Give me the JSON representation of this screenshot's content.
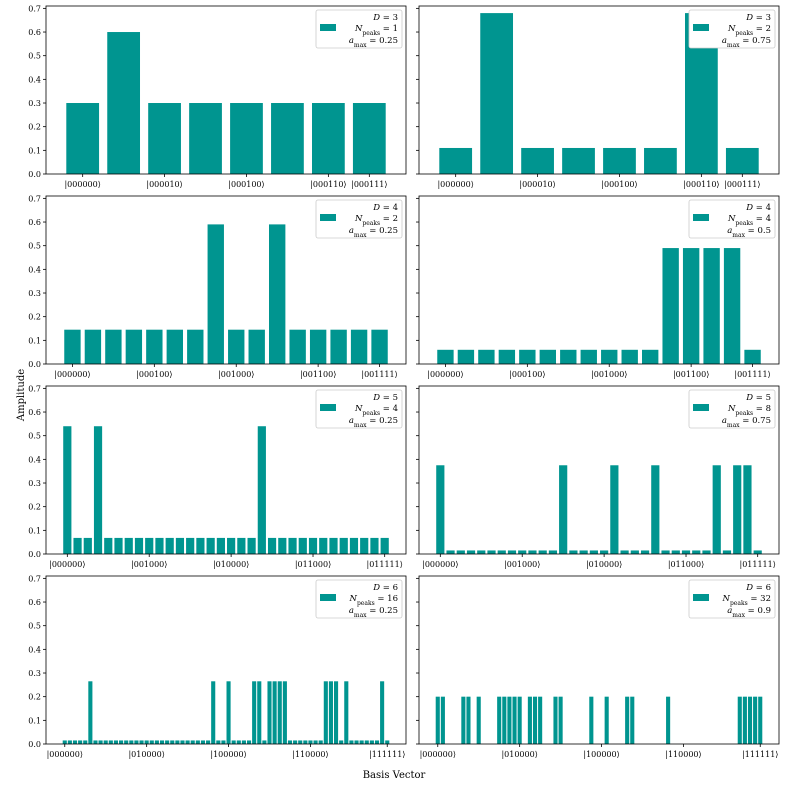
{
  "figure": {
    "xlabel": "Basis Vector",
    "ylabel": "Amplitude",
    "bar_color": "#009590",
    "y_ticks": [
      "0.0",
      "0.1",
      "0.2",
      "0.3",
      "0.4",
      "0.5",
      "0.6",
      "0.7"
    ]
  },
  "chart_data": [
    {
      "type": "bar",
      "title": "",
      "D": 3,
      "n_bars": 8,
      "legend": {
        "line1": "D = 3",
        "line2": "N_peaks = 1",
        "line3": "a_max = 0.25"
      },
      "ylim": [
        0,
        0.71
      ],
      "values": [
        0.3,
        0.6,
        0.3,
        0.3,
        0.3,
        0.3,
        0.3,
        0.3
      ],
      "xtick_positions": [
        0,
        2,
        4,
        6,
        7
      ],
      "xtick_labels": [
        "|000000⟩",
        "|000010⟩",
        "|000100⟩",
        "|000110⟩",
        "|000111⟩"
      ]
    },
    {
      "type": "bar",
      "title": "",
      "D": 3,
      "n_bars": 8,
      "legend": {
        "line1": "D = 3",
        "line2": "N_peaks = 2",
        "line3": "a_max = 0.75"
      },
      "ylim": [
        0,
        0.71
      ],
      "values": [
        0.11,
        0.68,
        0.11,
        0.11,
        0.11,
        0.11,
        0.68,
        0.11
      ],
      "xtick_positions": [
        0,
        2,
        4,
        6,
        7
      ],
      "xtick_labels": [
        "|000000⟩",
        "|000010⟩",
        "|000100⟩",
        "|000110⟩",
        "|000111⟩"
      ]
    },
    {
      "type": "bar",
      "title": "",
      "D": 4,
      "n_bars": 16,
      "legend": {
        "line1": "D = 4",
        "line2": "N_peaks = 2",
        "line3": "a_max = 0.25"
      },
      "ylim": [
        0,
        0.71
      ],
      "values": [
        0.145,
        0.145,
        0.145,
        0.145,
        0.145,
        0.145,
        0.145,
        0.59,
        0.145,
        0.145,
        0.59,
        0.145,
        0.145,
        0.145,
        0.145,
        0.145
      ],
      "xtick_positions": [
        0,
        4,
        8,
        12,
        15
      ],
      "xtick_labels": [
        "|000000⟩",
        "|000100⟩",
        "|001000⟩",
        "|001100⟩",
        "|001111⟩"
      ]
    },
    {
      "type": "bar",
      "title": "",
      "D": 4,
      "n_bars": 16,
      "legend": {
        "line1": "D = 4",
        "line2": "N_peaks = 4",
        "line3": "a_max = 0.5"
      },
      "ylim": [
        0,
        0.71
      ],
      "values": [
        0.06,
        0.06,
        0.06,
        0.06,
        0.06,
        0.06,
        0.06,
        0.06,
        0.06,
        0.06,
        0.06,
        0.49,
        0.49,
        0.49,
        0.49,
        0.06
      ],
      "xtick_positions": [
        0,
        4,
        8,
        12,
        15
      ],
      "xtick_labels": [
        "|000000⟩",
        "|000100⟩",
        "|001000⟩",
        "|001100⟩",
        "|001111⟩"
      ]
    },
    {
      "type": "bar",
      "title": "",
      "D": 5,
      "n_bars": 32,
      "legend": {
        "line1": "D = 5",
        "line2": "N_peaks = 4",
        "line3": "a_max = 0.25"
      },
      "ylim": [
        0,
        0.71
      ],
      "peak_value": 0.54,
      "base_value": 0.068,
      "peak_indices": [
        0,
        3,
        19
      ],
      "xtick_positions": [
        0,
        8,
        16,
        24,
        31
      ],
      "xtick_labels": [
        "|000000⟩",
        "|001000⟩",
        "|010000⟩",
        "|011000⟩",
        "|011111⟩"
      ]
    },
    {
      "type": "bar",
      "title": "",
      "D": 5,
      "n_bars": 32,
      "legend": {
        "line1": "D = 5",
        "line2": "N_peaks = 8",
        "line3": "a_max = 0.75"
      },
      "ylim": [
        0,
        0.71
      ],
      "peak_value": 0.375,
      "base_value": 0.015,
      "peak_indices": [
        0,
        12,
        17,
        21,
        27,
        29,
        30
      ],
      "xtick_positions": [
        0,
        8,
        16,
        24,
        31
      ],
      "xtick_labels": [
        "|000000⟩",
        "|001000⟩",
        "|010000⟩",
        "|011000⟩",
        "|011111⟩"
      ]
    },
    {
      "type": "bar",
      "title": "",
      "D": 6,
      "n_bars": 64,
      "legend": {
        "line1": "D = 6",
        "line2": "N_peaks = 16",
        "line3": "a_max = 0.25"
      },
      "ylim": [
        0,
        0.71
      ],
      "peak_value": 0.265,
      "base_value": 0.015,
      "peak_indices": [
        5,
        29,
        32,
        37,
        38,
        40,
        41,
        42,
        43,
        51,
        52,
        53,
        55,
        62
      ],
      "xtick_positions": [
        0,
        16,
        32,
        48,
        63
      ],
      "xtick_labels": [
        "|000000⟩",
        "|010000⟩",
        "|100000⟩",
        "|110000⟩",
        "|111111⟩"
      ]
    },
    {
      "type": "bar",
      "title": "",
      "D": 6,
      "n_bars": 64,
      "legend": {
        "line1": "D = 6",
        "line2": "N_peaks = 32",
        "line3": "a_max = 0.9"
      },
      "ylim": [
        0,
        0.71
      ],
      "peak_value": 0.2,
      "base_value": 0.0,
      "peak_indices": [
        0,
        1,
        5,
        6,
        8,
        12,
        13,
        14,
        15,
        16,
        18,
        19,
        20,
        23,
        24,
        30,
        33,
        37,
        38,
        45,
        59,
        60,
        61,
        62,
        63
      ],
      "xtick_positions": [
        0,
        16,
        32,
        48,
        63
      ],
      "xtick_labels": [
        "|000000⟩",
        "|010000⟩",
        "|100000⟩",
        "|110000⟩",
        "|111111⟩"
      ]
    }
  ]
}
